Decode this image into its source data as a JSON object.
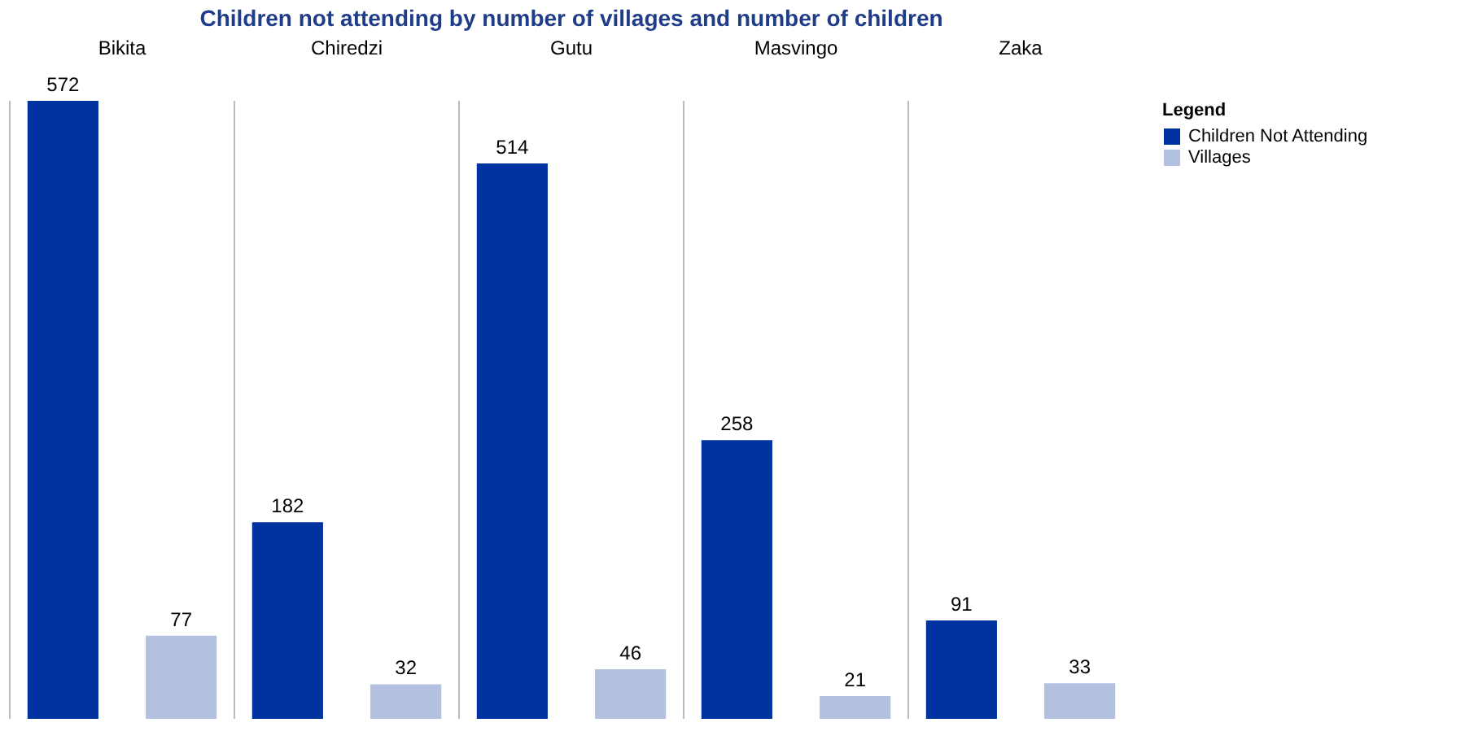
{
  "chart_data": {
    "type": "bar",
    "title": "Children not attending by number of villages and number of children",
    "categories": [
      "Bikita",
      "Chiredzi",
      "Gutu",
      "Masvingo",
      "Zaka"
    ],
    "series": [
      {
        "name": "Children Not Attending",
        "color": "#0033a0",
        "values": [
          572,
          182,
          514,
          258,
          91
        ]
      },
      {
        "name": "Villages",
        "color": "#b4c0e0",
        "values": [
          77,
          32,
          46,
          21,
          33
        ]
      }
    ],
    "data_labels": true,
    "legend": "top right",
    "legend_title": "Legend",
    "grid": "x"
  }
}
